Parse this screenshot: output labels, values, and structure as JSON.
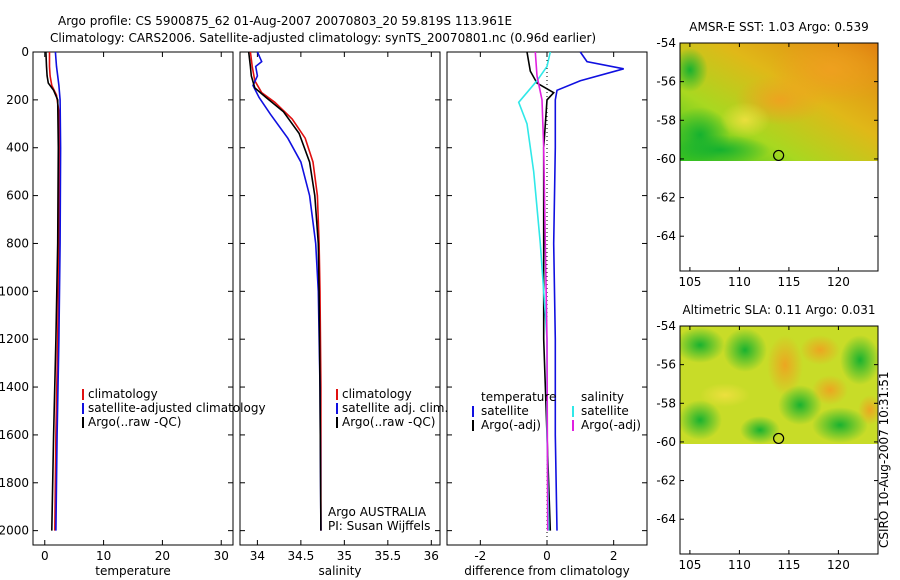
{
  "header": {
    "line1": "Argo profile: CS 5900875_62 01-Aug-2007 20070803_20 59.819S 113.961E",
    "line2": "Climatology: CARS2006. Satellite-adjusted climatology: synTS_20070801.nc (0.96d earlier)"
  },
  "footer": {
    "stamp": "CSIRO 10-Aug-2007 10:31:51"
  },
  "colors": {
    "red": "#e01010",
    "blue": "#1010e0",
    "black": "#000000",
    "cyan": "#30e8e8",
    "magenta": "#e020e0"
  },
  "chart_data": [
    {
      "type": "line",
      "xlabel": "temperature",
      "xlim": [
        -2,
        32
      ],
      "ylim": [
        0,
        2060
      ],
      "xticks": [
        0,
        10,
        20,
        30
      ],
      "yticks": [
        0,
        200,
        400,
        600,
        800,
        1000,
        1200,
        1400,
        1600,
        1800,
        2000
      ],
      "legend": [
        "climatology",
        "satellite-adjusted climatology",
        "Argo(..raw -QC)"
      ],
      "series": [
        {
          "name": "climatology",
          "color": "red",
          "points": [
            [
              0.8,
              0
            ],
            [
              0.8,
              60
            ],
            [
              0.9,
              100
            ],
            [
              1.2,
              140
            ],
            [
              2.0,
              180
            ],
            [
              2.4,
              250
            ],
            [
              2.5,
              400
            ],
            [
              2.4,
              800
            ],
            [
              2.2,
              1200
            ],
            [
              1.9,
              1600
            ],
            [
              1.7,
              2000
            ]
          ]
        },
        {
          "name": "satellite-adjusted climatology",
          "color": "blue",
          "points": [
            [
              1.8,
              0
            ],
            [
              2.0,
              60
            ],
            [
              2.2,
              100
            ],
            [
              2.4,
              140
            ],
            [
              2.6,
              200
            ],
            [
              2.7,
              400
            ],
            [
              2.6,
              800
            ],
            [
              2.4,
              1200
            ],
            [
              2.1,
              1600
            ],
            [
              1.9,
              2000
            ]
          ]
        },
        {
          "name": "Argo(..raw -QC)",
          "color": "black",
          "points": [
            [
              0.2,
              0
            ],
            [
              0.3,
              60
            ],
            [
              0.4,
              100
            ],
            [
              0.6,
              130
            ],
            [
              1.5,
              160
            ],
            [
              2.2,
              200
            ],
            [
              2.3,
              400
            ],
            [
              2.2,
              800
            ],
            [
              1.9,
              1200
            ],
            [
              1.5,
              1600
            ],
            [
              1.2,
              2000
            ]
          ]
        }
      ]
    },
    {
      "type": "line",
      "xlabel": "salinity",
      "xlim": [
        33.8,
        36.1
      ],
      "ylim": [
        0,
        2060
      ],
      "xticks": [
        34,
        34.5,
        35,
        35.5,
        36
      ],
      "legend": [
        "climatology",
        "satellite adj. clim.",
        "Argo(..raw -QC)"
      ],
      "annotations": [
        "Argo AUSTRALIA",
        "PI: Susan Wijffels"
      ],
      "series": [
        {
          "name": "climatology",
          "color": "red",
          "points": [
            [
              33.92,
              0
            ],
            [
              33.94,
              60
            ],
            [
              33.97,
              120
            ],
            [
              34.05,
              170
            ],
            [
              34.2,
              210
            ],
            [
              34.4,
              280
            ],
            [
              34.55,
              360
            ],
            [
              34.64,
              460
            ],
            [
              34.69,
              600
            ],
            [
              34.71,
              800
            ],
            [
              34.72,
              1000
            ],
            [
              34.73,
              1400
            ],
            [
              34.73,
              2000
            ]
          ]
        },
        {
          "name": "satellite adj. clim.",
          "color": "blue",
          "points": [
            [
              34.0,
              0
            ],
            [
              34.05,
              40
            ],
            [
              33.98,
              60
            ],
            [
              34.0,
              100
            ],
            [
              33.95,
              140
            ],
            [
              34.02,
              190
            ],
            [
              34.15,
              260
            ],
            [
              34.35,
              360
            ],
            [
              34.5,
              460
            ],
            [
              34.6,
              600
            ],
            [
              34.67,
              800
            ],
            [
              34.7,
              1000
            ],
            [
              34.72,
              1400
            ],
            [
              34.73,
              2000
            ]
          ]
        },
        {
          "name": "Argo(..raw -QC)",
          "color": "black",
          "points": [
            [
              33.9,
              0
            ],
            [
              33.92,
              60
            ],
            [
              33.93,
              100
            ],
            [
              33.97,
              150
            ],
            [
              34.1,
              190
            ],
            [
              34.3,
              250
            ],
            [
              34.48,
              340
            ],
            [
              34.6,
              460
            ],
            [
              34.66,
              600
            ],
            [
              34.7,
              800
            ],
            [
              34.71,
              1000
            ],
            [
              34.72,
              1400
            ],
            [
              34.73,
              2000
            ]
          ]
        }
      ]
    },
    {
      "type": "line",
      "xlabel": "difference from climatology",
      "xlim": [
        -3,
        3
      ],
      "ylim": [
        0,
        2060
      ],
      "xticks": [
        -2,
        0,
        2
      ],
      "legend": [
        "temperature",
        "satellite",
        "Argo(-adj)",
        "salinity",
        "satellite",
        "Argo(-adj)"
      ],
      "series": [
        {
          "name": "temperature satellite",
          "color": "blue",
          "points": [
            [
              1.0,
              0
            ],
            [
              1.2,
              40
            ],
            [
              2.3,
              70
            ],
            [
              1.0,
              120
            ],
            [
              0.3,
              160
            ],
            [
              0.25,
              200
            ],
            [
              0.25,
              400
            ],
            [
              0.2,
              800
            ],
            [
              0.25,
              1200
            ],
            [
              0.25,
              1600
            ],
            [
              0.3,
              2000
            ]
          ]
        },
        {
          "name": "temperature Argo(-adj)",
          "color": "black",
          "points": [
            [
              -0.6,
              0
            ],
            [
              -0.5,
              80
            ],
            [
              -0.3,
              130
            ],
            [
              0.2,
              170
            ],
            [
              0,
              200
            ],
            [
              -0.1,
              400
            ],
            [
              -0.1,
              800
            ],
            [
              -0.1,
              1200
            ],
            [
              0,
              1600
            ],
            [
              0.1,
              2000
            ]
          ]
        },
        {
          "name": "salinity satellite",
          "color": "cyan",
          "points": [
            [
              0.1,
              0
            ],
            [
              0.0,
              60
            ],
            [
              -0.3,
              120
            ],
            [
              -0.85,
              210
            ],
            [
              -0.6,
              300
            ],
            [
              -0.4,
              500
            ],
            [
              -0.2,
              800
            ],
            [
              -0.1,
              1000
            ],
            [
              0,
              1200
            ],
            [
              0,
              1600
            ],
            [
              0.05,
              2000
            ]
          ]
        },
        {
          "name": "salinity Argo(-adj)",
          "color": "magenta",
          "points": [
            [
              -0.35,
              0
            ],
            [
              -0.3,
              100
            ],
            [
              -0.15,
              200
            ],
            [
              -0.1,
              400
            ],
            [
              -0.05,
              800
            ],
            [
              0,
              1200
            ],
            [
              0.02,
              2000
            ]
          ]
        }
      ]
    },
    {
      "type": "heatmap",
      "title": "AMSR-E SST: 1.03 Argo: 0.539",
      "xlim": [
        104,
        124
      ],
      "ylim": [
        -65.8,
        -54
      ],
      "xticks": [
        105,
        110,
        115,
        120
      ],
      "yticks": [
        -54,
        -56,
        -58,
        -60,
        -62,
        -64
      ],
      "data_extent_lat": [
        -60,
        -54
      ],
      "marker": {
        "lon": 113.961,
        "lat": -59.819
      }
    },
    {
      "type": "heatmap",
      "title": "Altimetric SLA: 0.11 Argo: 0.031",
      "xlim": [
        104,
        124
      ],
      "ylim": [
        -65.8,
        -54
      ],
      "xticks": [
        105,
        110,
        115,
        120
      ],
      "yticks": [
        -54,
        -56,
        -58,
        -60,
        -62,
        -64
      ],
      "data_extent_lat": [
        -60,
        -54
      ],
      "marker": {
        "lon": 113.961,
        "lat": -59.819
      }
    }
  ]
}
